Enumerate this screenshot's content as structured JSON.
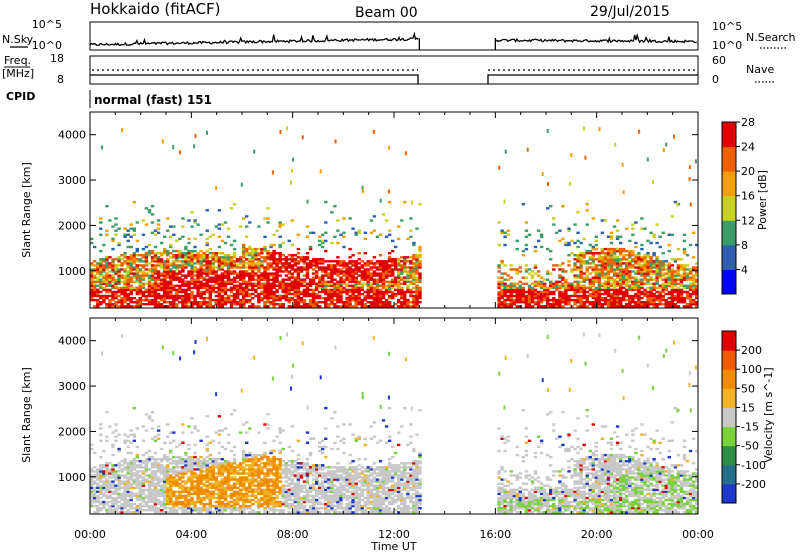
{
  "header": {
    "title": "Hokkaido (fitACF)",
    "beam": "Beam 00",
    "date": "29/Jul/2015"
  },
  "panels": {
    "nsky": {
      "label": "N.Sky",
      "right_label": "N.Search",
      "ticks_left": [
        "10^5",
        "10^0"
      ],
      "ticks_right": [
        "10^5",
        "10^0"
      ]
    },
    "freq": {
      "label_top": "Freq.",
      "label_unit": "[MHz]",
      "right_label": "Nave",
      "ticks_left": [
        "18",
        "8"
      ],
      "ticks_right": [
        "60",
        "0"
      ],
      "cpid_label": "CPID",
      "cpid_value": "normal (fast) 151"
    }
  },
  "chart_data": [
    {
      "type": "heatmap",
      "name": "power",
      "title": "",
      "xlabel": "",
      "ylabel": "Slant Range [km]",
      "yticks": [
        "1000",
        "2000",
        "3000",
        "4000"
      ],
      "ylim": [
        180,
        4500
      ],
      "colorbar": {
        "label": "Power [dB]",
        "ticks": [
          "4",
          "8",
          "12",
          "16",
          "20",
          "24",
          "28"
        ],
        "colors": [
          "#0000ff",
          "#2f5faf",
          "#3c9d68",
          "#c8d020",
          "#f2a000",
          "#f16000",
          "#e00000"
        ]
      },
      "data_gap_hours": [
        13.0,
        16.0
      ]
    },
    {
      "type": "heatmap",
      "name": "velocity",
      "title": "",
      "xlabel": "Time UT",
      "xticks": [
        "00:00",
        "04:00",
        "08:00",
        "12:00",
        "16:00",
        "20:00",
        "00:00"
      ],
      "xlim_hours": [
        0,
        24
      ],
      "ylabel": "Slant Range [km]",
      "yticks": [
        "1000",
        "2000",
        "3000",
        "4000"
      ],
      "ylim": [
        180,
        4500
      ],
      "colorbar": {
        "label": "Velocity [m s^-1]",
        "ticks": [
          "200",
          "100",
          "50",
          "15",
          "-15",
          "-50",
          "-100",
          "-200"
        ],
        "colors": [
          "#1e38c8",
          "#286e8c",
          "#2f8c46",
          "#78d23c",
          "#c8c8c8",
          "#f0b428",
          "#f08c00",
          "#f05a00",
          "#e00000"
        ]
      },
      "data_gap_hours": [
        13.0,
        16.0
      ]
    }
  ]
}
